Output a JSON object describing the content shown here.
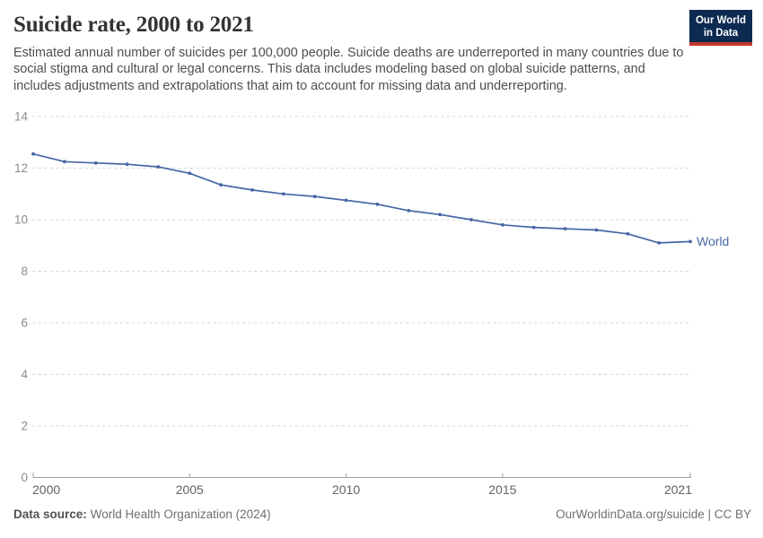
{
  "header": {
    "title": "Suicide rate, 2000 to 2021",
    "subtitle": "Estimated annual number of suicides per 100,000 people. Suicide deaths are underreported in many countries due to social stigma and cultural or legal concerns. This data includes modeling based on global suicide patterns, and includes adjustments and extrapolations that aim to account for missing data and underreporting."
  },
  "logo": {
    "line1": "Our World",
    "line2": "in Data",
    "background": "#0d2a50",
    "stripe": "#c0392b"
  },
  "chart_data": {
    "type": "line",
    "title": "Suicide rate, 2000 to 2021",
    "xlabel": "",
    "ylabel": "",
    "x": [
      2000,
      2001,
      2002,
      2003,
      2004,
      2005,
      2006,
      2007,
      2008,
      2009,
      2010,
      2011,
      2012,
      2013,
      2014,
      2015,
      2016,
      2017,
      2018,
      2019,
      2020,
      2021
    ],
    "series": [
      {
        "name": "World",
        "values": [
          12.55,
          12.25,
          12.2,
          12.15,
          12.05,
          11.8,
          11.35,
          11.15,
          11.0,
          10.9,
          10.75,
          10.6,
          10.35,
          10.2,
          10.0,
          9.8,
          9.7,
          9.65,
          9.6,
          9.45,
          9.1,
          9.15
        ]
      }
    ],
    "ylim": [
      0,
      14
    ],
    "yticks": [
      0,
      2,
      4,
      6,
      8,
      10,
      12,
      14
    ],
    "xticks": [
      2000,
      2005,
      2010,
      2015,
      2021
    ],
    "grid": "horizontal-dashed",
    "legend_position": "end-of-line-label",
    "markers": true
  },
  "footer": {
    "source_label": "Data source:",
    "source_value": "World Health Organization (2024)",
    "attribution": "OurWorldinData.org/suicide | CC BY"
  },
  "colors": {
    "line": "#4766a4",
    "grid": "#d9d9d9",
    "axis": "#9e9e9e",
    "y_tick_label": "#8c8c8c",
    "x_tick_label": "#636363",
    "title": "#333333",
    "subtitle": "#4e4e4e"
  }
}
